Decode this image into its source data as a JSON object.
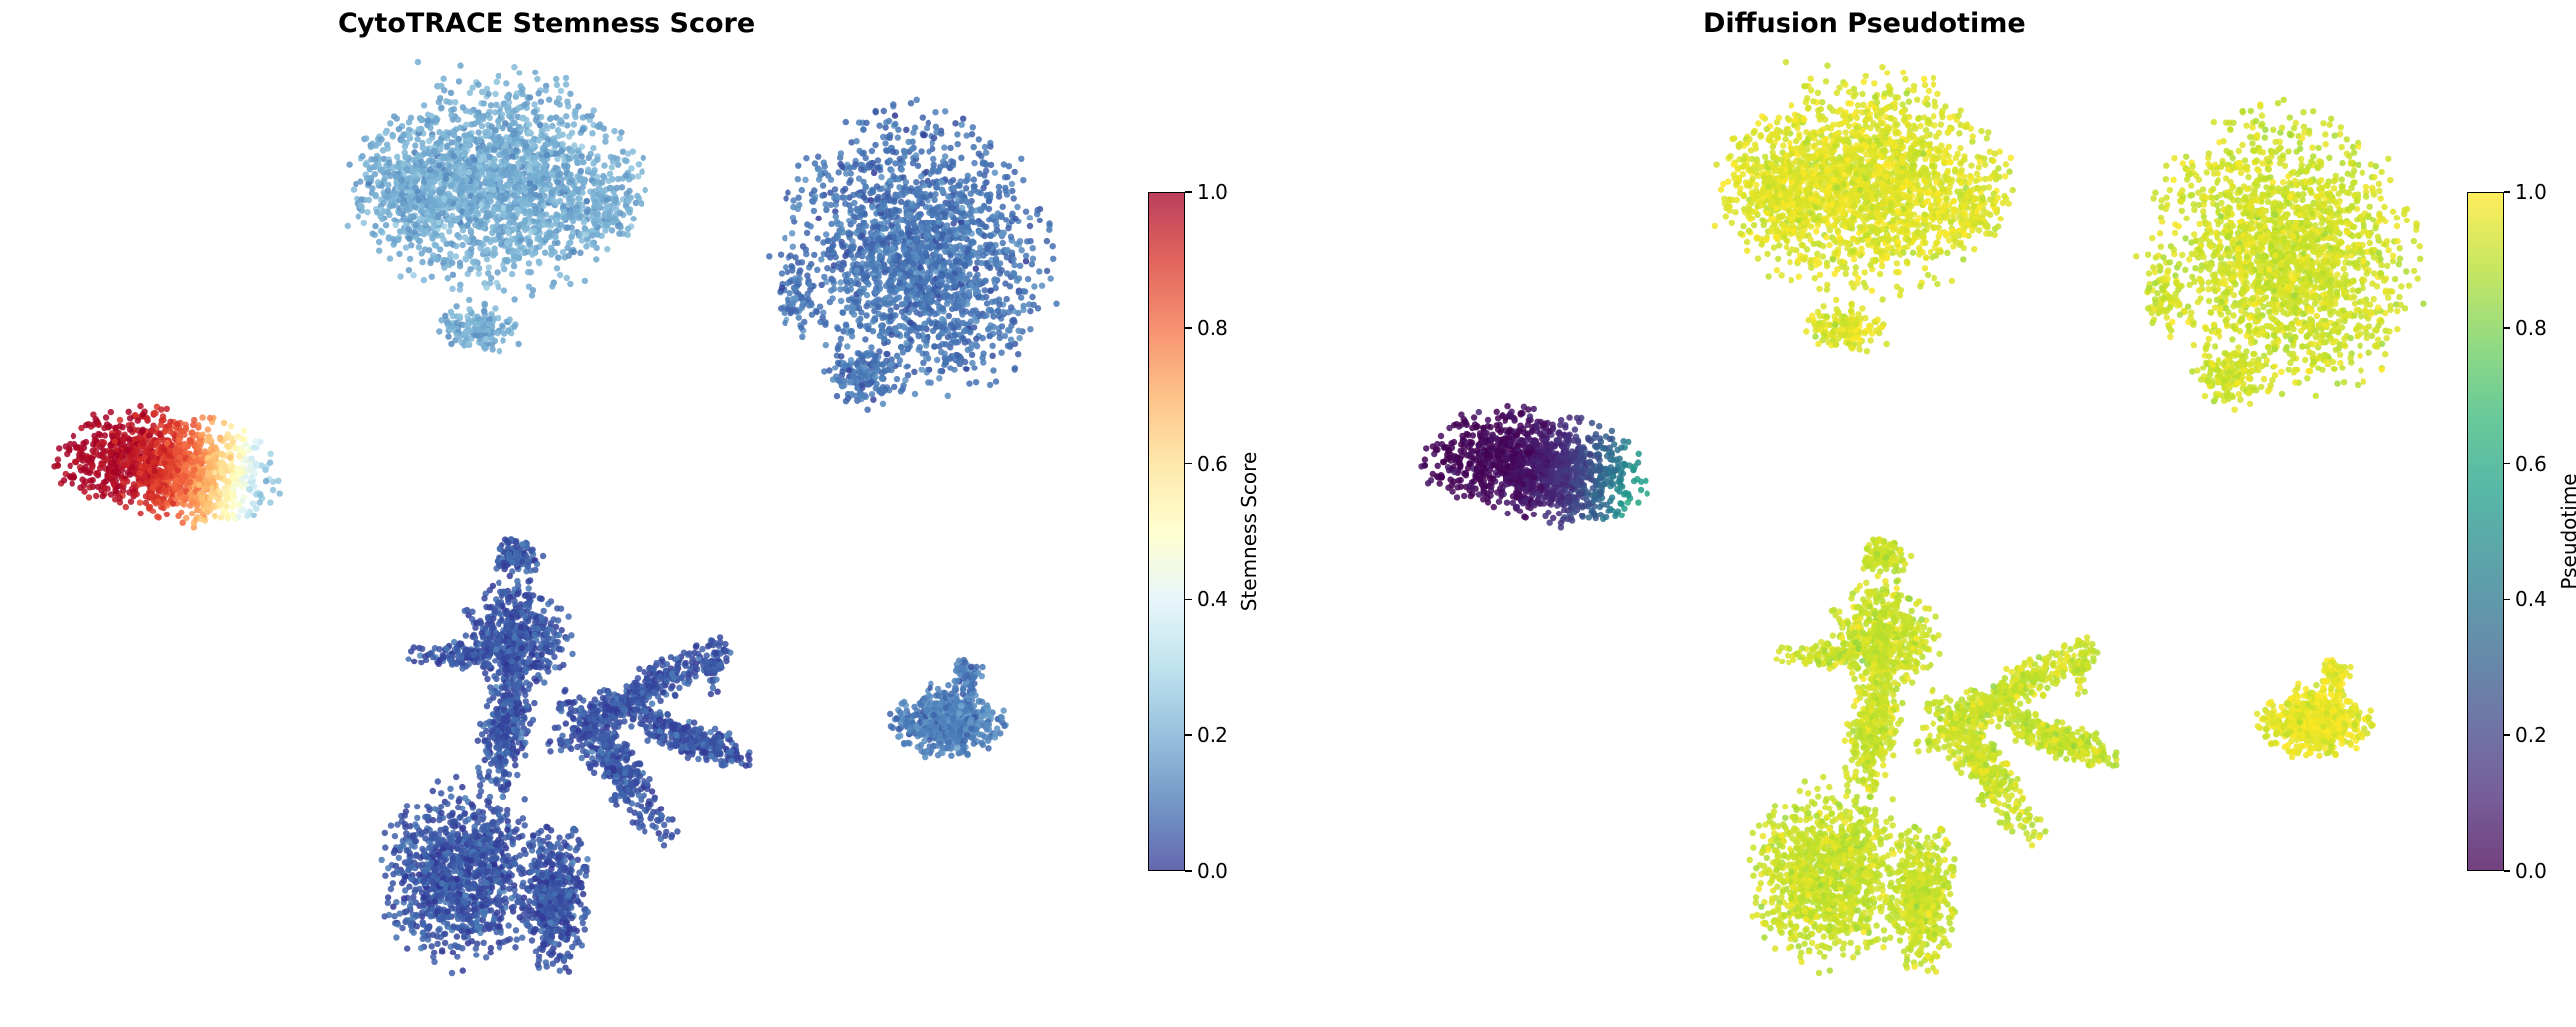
{
  "chart_data": [
    {
      "type": "scatter",
      "title": "CytoTRACE Stemness Score",
      "xlabel": "",
      "ylabel": "",
      "colormap": "RdYlBu_r",
      "colorbar": {
        "label": "Stemness Score",
        "range": [
          0.0,
          1.0
        ],
        "ticks": [
          "0.0",
          "0.2",
          "0.4",
          "0.6",
          "0.8",
          "1.0"
        ]
      },
      "clusters": [
        {
          "id": "top-left",
          "value_mean": 0.2
        },
        {
          "id": "top-right",
          "value_mean": 0.1
        },
        {
          "id": "left-elongated",
          "value_mean": 0.9,
          "value_range": [
            0.25,
            1.0
          ]
        },
        {
          "id": "bottom-branching",
          "value_mean": 0.05
        },
        {
          "id": "small-right",
          "value_mean": 0.12
        }
      ]
    },
    {
      "type": "scatter",
      "title": "Diffusion Pseudotime",
      "xlabel": "",
      "ylabel": "",
      "colormap": "viridis",
      "colorbar": {
        "label": "Pseudotime",
        "range": [
          0.0,
          1.0
        ],
        "ticks": [
          "0.0",
          "0.2",
          "0.4",
          "0.6",
          "0.8",
          "1.0"
        ]
      },
      "clusters": [
        {
          "id": "top-left",
          "value_mean": 0.95
        },
        {
          "id": "top-right",
          "value_mean": 0.93
        },
        {
          "id": "left-elongated",
          "value_mean": 0.0,
          "value_range": [
            0.0,
            0.55
          ]
        },
        {
          "id": "bottom-branching",
          "value_mean": 0.92
        },
        {
          "id": "small-right",
          "value_mean": 0.97
        }
      ]
    }
  ],
  "colors": {
    "rdylbu": [
      "#313695",
      "#4575b4",
      "#74add1",
      "#abd9e9",
      "#e0f3f8",
      "#ffffbf",
      "#fee090",
      "#fdae61",
      "#f46d43",
      "#d73027",
      "#a50026"
    ],
    "viridis": [
      "#440154",
      "#482878",
      "#3e4989",
      "#31688e",
      "#26828e",
      "#1f9e89",
      "#35b779",
      "#6ece58",
      "#b5de2b",
      "#fde725"
    ]
  }
}
